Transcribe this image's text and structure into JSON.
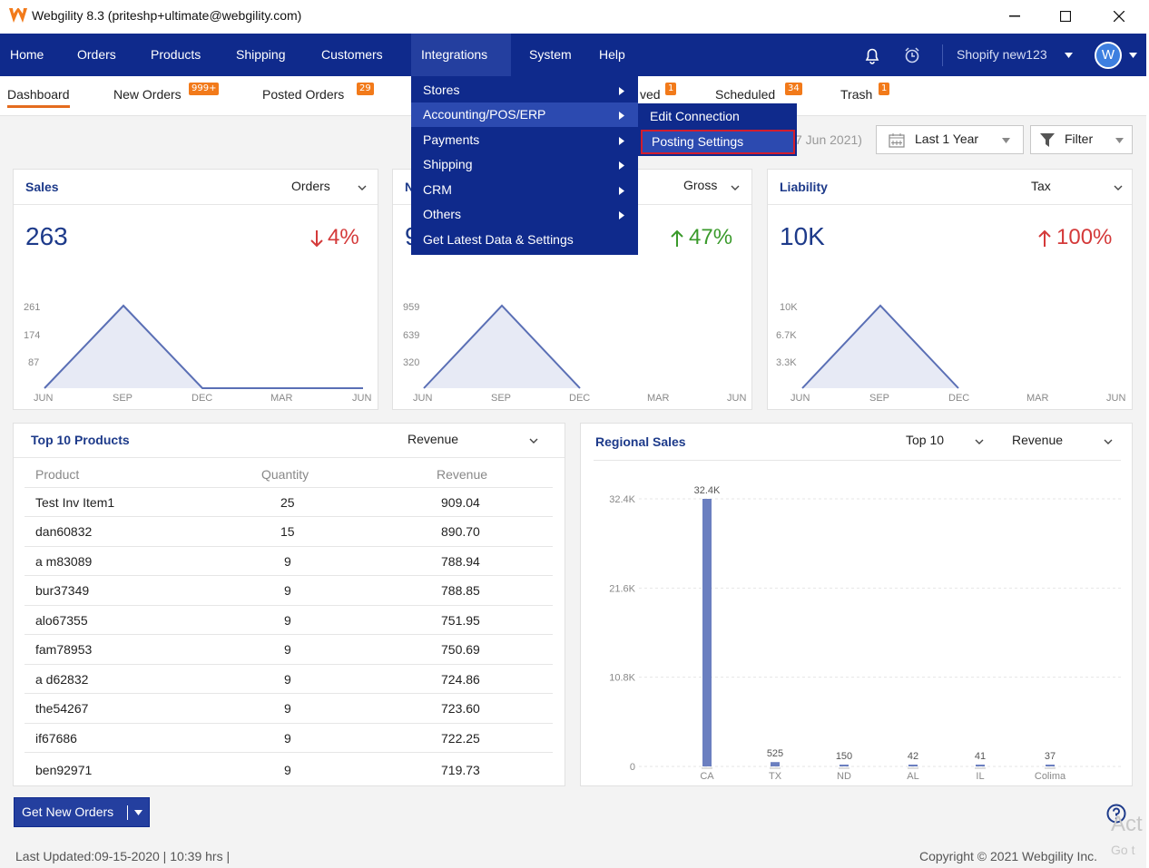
{
  "window": {
    "title": "Webgility 8.3 (priteshp+ultimate@webgility.com)",
    "minimize_icon": "minimize-icon",
    "maximize_icon": "maximize-icon",
    "close_icon": "close-icon"
  },
  "navbar": {
    "items": [
      "Home",
      "Orders",
      "Products",
      "Shipping",
      "Customers",
      "Integrations",
      "System",
      "Help"
    ],
    "store": "Shopify new123",
    "avatar": "W"
  },
  "subnav": {
    "tabs": [
      {
        "label": "Dashboard"
      },
      {
        "label": "New Orders",
        "badge": "999+"
      },
      {
        "label": "Posted Orders",
        "badge": "29"
      },
      {
        "label": "ved",
        "badge": "1"
      },
      {
        "label": "Scheduled",
        "badge": "34"
      },
      {
        "label": "Trash",
        "badge": "1"
      }
    ]
  },
  "toolbar": {
    "date_fragment": "7 Jun 2021)",
    "range": "Last 1 Year",
    "filter": "Filter"
  },
  "integrations_menu": {
    "items": [
      "Stores",
      "Accounting/POS/ERP",
      "Payments",
      "Shipping",
      "CRM",
      "Others",
      "Get Latest Data & Settings"
    ],
    "submenu": [
      "Edit Connection",
      "Posting Settings"
    ]
  },
  "cards": {
    "sales": {
      "title": "Sales",
      "selector": "Orders",
      "value": "263",
      "pct": "4%",
      "y_ticks": [
        "261",
        "174",
        "87"
      ],
      "x_ticks": [
        "JUN",
        "SEP",
        "DEC",
        "MAR",
        "JUN"
      ]
    },
    "middle": {
      "title": "N",
      "selector": "Gross",
      "value": "9",
      "pct": "47%",
      "y_ticks": [
        "959",
        "639",
        "320"
      ],
      "x_ticks": [
        "JUN",
        "SEP",
        "DEC",
        "MAR",
        "JUN"
      ]
    },
    "liability": {
      "title": "Liability",
      "selector": "Tax",
      "value": "10K",
      "pct": "100%",
      "y_ticks": [
        "10K",
        "6.7K",
        "3.3K"
      ],
      "x_ticks": [
        "JUN",
        "SEP",
        "DEC",
        "MAR",
        "JUN"
      ]
    }
  },
  "top_products": {
    "title": "Top 10 Products",
    "selector": "Revenue",
    "headers": [
      "Product",
      "Quantity",
      "Revenue"
    ],
    "rows": [
      [
        "Test Inv Item1",
        "25",
        "909.04"
      ],
      [
        "dan60832",
        "15",
        "890.70"
      ],
      [
        "a m83089",
        "9",
        "788.94"
      ],
      [
        "bur37349",
        "9",
        "788.85"
      ],
      [
        "alo67355",
        "9",
        "751.95"
      ],
      [
        "fam78953",
        "9",
        "750.69"
      ],
      [
        "a d62832",
        "9",
        "724.86"
      ],
      [
        "the54267",
        "9",
        "723.60"
      ],
      [
        "if67686",
        "9",
        "722.25"
      ],
      [
        "ben92971",
        "9",
        "719.73"
      ]
    ]
  },
  "regional_sales": {
    "title": "Regional Sales",
    "top_selector": "Top 10",
    "metric_selector": "Revenue",
    "y_ticks": [
      "32.4K",
      "21.6K",
      "10.8K",
      "0"
    ]
  },
  "chart_data": [
    {
      "type": "bar",
      "title": "Regional Sales",
      "categories": [
        "CA",
        "TX",
        "ND",
        "AL",
        "IL",
        "Colima"
      ],
      "values": [
        32400,
        525,
        150,
        42,
        41,
        37
      ],
      "data_labels": [
        "32.4K",
        "525",
        "150",
        "42",
        "41",
        "37"
      ],
      "ylim": [
        0,
        32400
      ],
      "color": "#6b7fc0"
    }
  ],
  "bottom": {
    "get_orders": "Get New Orders",
    "last_updated": "Last Updated:09-15-2020 | 10:39 hrs |",
    "copyright": "Copyright © 2021 Webgility Inc.",
    "watermark1": "Act",
    "watermark2": "Go t"
  },
  "colors": {
    "nav": "#0f2a8c",
    "accent_orange": "#f27a1a",
    "up_green": "#3a9a2b",
    "down_red": "#d43a3a",
    "highlight_box": "#d31d2d"
  }
}
